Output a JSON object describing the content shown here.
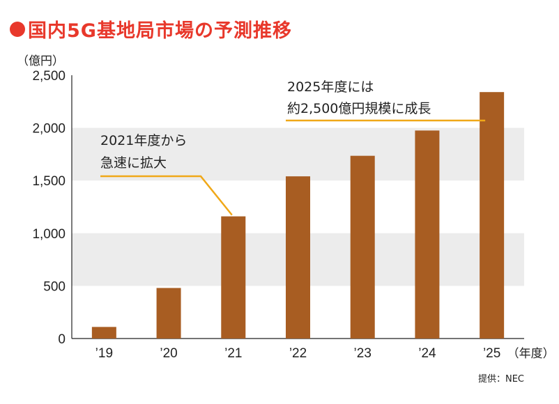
{
  "title": "国内5G基地局市場の予測推移",
  "source": "提供：NEC",
  "colors": {
    "title": "#e8382b",
    "bar": "#a85d22",
    "annotation_line": "#f0a818",
    "band": "#ececec"
  },
  "chart_data": {
    "type": "bar",
    "categories": [
      "’19",
      "’20",
      "’21",
      "’22",
      "’23",
      "’24",
      "’25"
    ],
    "values": [
      110,
      480,
      1160,
      1540,
      1735,
      1975,
      2340
    ],
    "ylabel": "（億円）",
    "xlabel": "（年度）",
    "ylim": [
      0,
      2500
    ],
    "yticks": [
      0,
      500,
      1000,
      1500,
      2000,
      2500
    ],
    "ytick_labels": [
      "0",
      "500",
      "1,000",
      "1,500",
      "2,000",
      "2,500"
    ],
    "grid": "alternating horizontal bands",
    "annotations": [
      {
        "lines": [
          "2021年度から",
          "急速に拡大"
        ],
        "category": "’21"
      },
      {
        "lines": [
          "2025年度には",
          "約2,500億円規模に成長"
        ],
        "category": "’25"
      }
    ]
  }
}
